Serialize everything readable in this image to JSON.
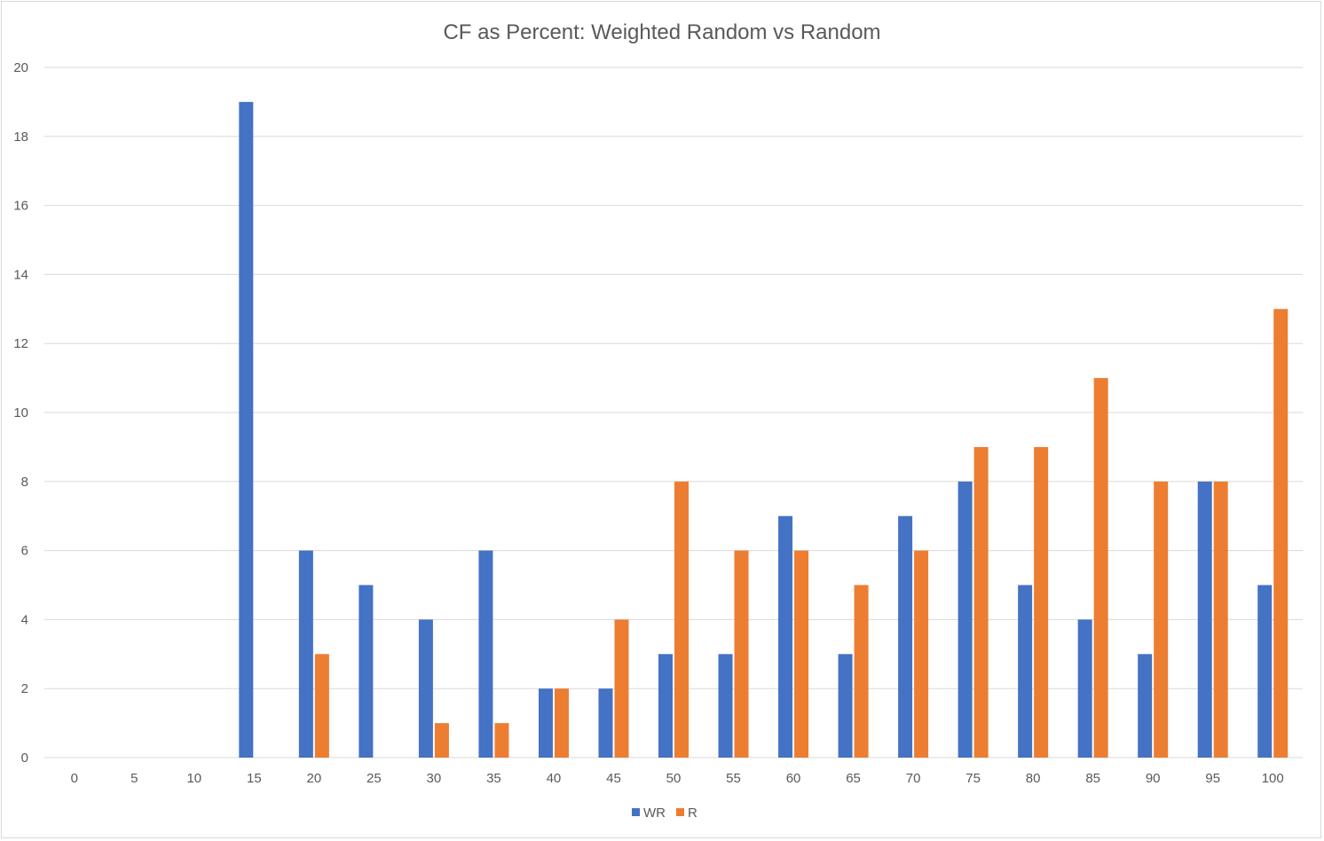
{
  "chart_data": {
    "type": "bar",
    "title": "CF as Percent: Weighted Random vs Random",
    "xlabel": "",
    "ylabel": "",
    "categories": [
      "0",
      "5",
      "10",
      "15",
      "20",
      "25",
      "30",
      "35",
      "40",
      "45",
      "50",
      "55",
      "60",
      "65",
      "70",
      "75",
      "80",
      "85",
      "90",
      "95",
      "100"
    ],
    "series": [
      {
        "name": "WR",
        "color": "#4472C4",
        "values": [
          0,
          0,
          0,
          19,
          6,
          5,
          4,
          6,
          2,
          2,
          3,
          3,
          7,
          3,
          7,
          8,
          5,
          4,
          3,
          8,
          5
        ]
      },
      {
        "name": "R",
        "color": "#ED7D31",
        "values": [
          0,
          0,
          0,
          0,
          3,
          0,
          1,
          1,
          2,
          4,
          8,
          6,
          6,
          5,
          6,
          9,
          9,
          11,
          8,
          8,
          13
        ]
      }
    ],
    "ylim": [
      0,
      20
    ],
    "yticks": [
      "0",
      "2",
      "4",
      "6",
      "8",
      "10",
      "12",
      "14",
      "16",
      "18",
      "20"
    ],
    "grid": true,
    "legend_position": "bottom",
    "gridline_color": "#d9d9d9",
    "text_color": "#595959"
  }
}
